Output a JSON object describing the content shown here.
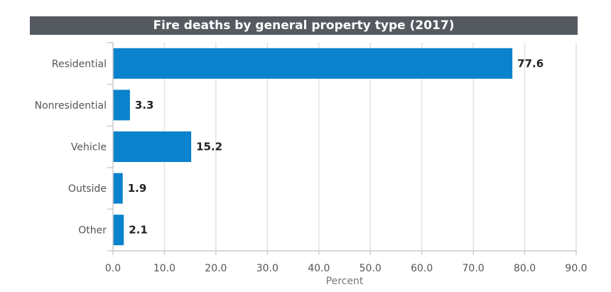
{
  "chart_data": {
    "type": "bar",
    "orientation": "horizontal",
    "title": "Fire deaths by general property type (2017)",
    "categories": [
      "Residential",
      "Nonresidential",
      "Vehicle",
      "Outside",
      "Other"
    ],
    "values": [
      77.6,
      3.3,
      15.2,
      1.9,
      2.1
    ],
    "value_labels": [
      "77.6",
      "3.3",
      "15.2",
      "1.9",
      "2.1"
    ],
    "xlabel": "Percent",
    "ylabel": "",
    "xlim": [
      0,
      90
    ],
    "xticks": [
      "0.0",
      "10.0",
      "20.0",
      "30.0",
      "40.0",
      "50.0",
      "60.0",
      "70.0",
      "80.0",
      "90.0"
    ],
    "grid": true,
    "bar_color": "#0a82cc",
    "title_bar_color": "#555a60"
  }
}
